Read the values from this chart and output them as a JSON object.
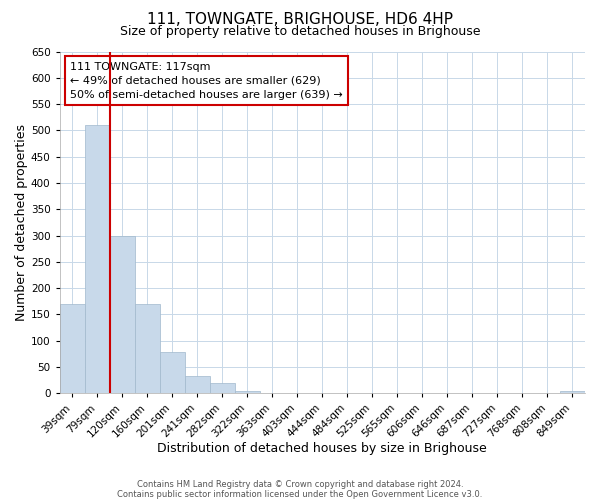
{
  "title": "111, TOWNGATE, BRIGHOUSE, HD6 4HP",
  "subtitle": "Size of property relative to detached houses in Brighouse",
  "xlabel": "Distribution of detached houses by size in Brighouse",
  "ylabel": "Number of detached properties",
  "bar_labels": [
    "39sqm",
    "79sqm",
    "120sqm",
    "160sqm",
    "201sqm",
    "241sqm",
    "282sqm",
    "322sqm",
    "363sqm",
    "403sqm",
    "444sqm",
    "484sqm",
    "525sqm",
    "565sqm",
    "606sqm",
    "646sqm",
    "687sqm",
    "727sqm",
    "768sqm",
    "808sqm",
    "849sqm"
  ],
  "bar_values": [
    170,
    510,
    300,
    170,
    78,
    33,
    20,
    5,
    0,
    0,
    0,
    0,
    0,
    0,
    0,
    0,
    0,
    0,
    0,
    0,
    5
  ],
  "bar_color": "#c8d9ea",
  "bar_edge_color": "#a0b8cc",
  "vline_color": "#cc0000",
  "ylim": [
    0,
    650
  ],
  "yticks": [
    0,
    50,
    100,
    150,
    200,
    250,
    300,
    350,
    400,
    450,
    500,
    550,
    600,
    650
  ],
  "annotation_title": "111 TOWNGATE: 117sqm",
  "annotation_line1": "← 49% of detached houses are smaller (629)",
  "annotation_line2": "50% of semi-detached houses are larger (639) →",
  "annotation_box_color": "#ffffff",
  "annotation_box_edge": "#cc0000",
  "footer1": "Contains HM Land Registry data © Crown copyright and database right 2024.",
  "footer2": "Contains public sector information licensed under the Open Government Licence v3.0.",
  "bg_color": "#ffffff",
  "grid_color": "#c8d8e8",
  "title_fontsize": 11,
  "subtitle_fontsize": 9,
  "axis_label_fontsize": 9,
  "tick_fontsize": 7.5,
  "annotation_fontsize": 8,
  "footer_fontsize": 6
}
